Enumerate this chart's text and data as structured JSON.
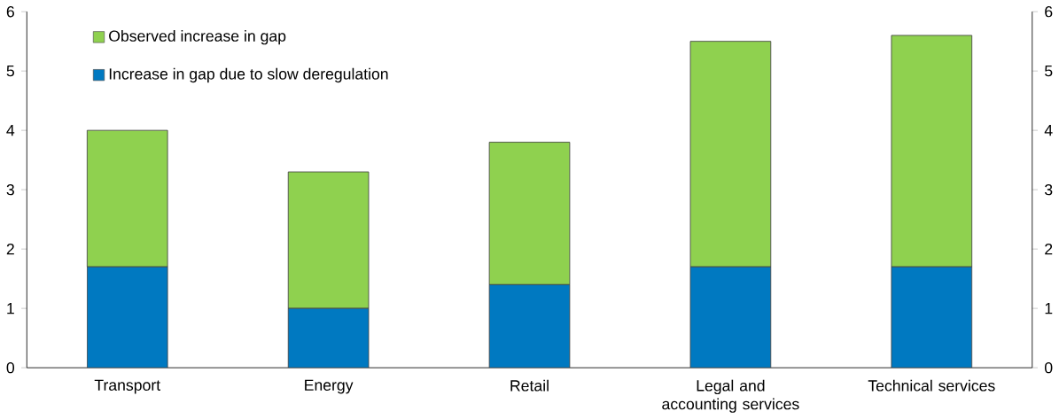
{
  "chart_data": {
    "type": "bar",
    "stacked": true,
    "categories": [
      "Transport",
      "Energy",
      "Retail",
      "Legal and accounting services",
      "Technical services"
    ],
    "series": [
      {
        "name": "Increase in gap due to slow deregulation",
        "color": "#0079c1",
        "values": [
          1.7,
          1.0,
          1.4,
          1.7,
          1.7
        ]
      },
      {
        "name": "Observed increase in gap",
        "color": "#8fd14f",
        "values": [
          2.3,
          2.3,
          2.4,
          3.8,
          3.9
        ]
      }
    ],
    "ylim": [
      0,
      6
    ],
    "yticks": [
      0,
      1,
      2,
      3,
      4,
      5,
      6
    ],
    "y2lim": [
      0,
      6
    ],
    "y2ticks": [
      0,
      1,
      2,
      3,
      4,
      5,
      6
    ],
    "legend": "top left",
    "grid": false
  }
}
